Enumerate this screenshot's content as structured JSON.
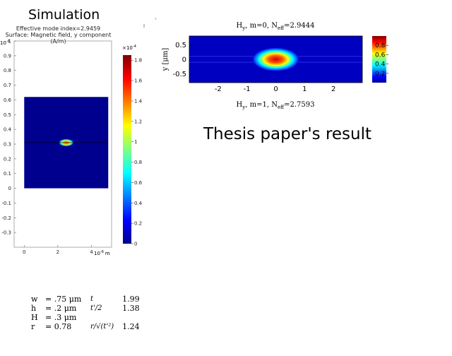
{
  "simulation": {
    "title": "Simulation",
    "subtitle1": "Effective mode index=2.9459",
    "subtitle2": "Surface: Magnetic field, y component (A/m)",
    "y_exponent": "10",
    "y_exponent_power": "-6",
    "x_exponent": "10",
    "x_exponent_power": "-6",
    "x_unit": "m",
    "colorbar_multiplier": "×10",
    "colorbar_multiplier_power": "-4",
    "colormap": "jet",
    "background_color": "#00008f"
  },
  "thesis": {
    "label": "Thesis paper's result",
    "top_title": "H",
    "top_title_sub": "y",
    "top_title_mid": ", m=0, N",
    "top_title_sub2": "eff",
    "top_title_val": "=2.9444",
    "bottom_title": "H",
    "bottom_title_sub": "y",
    "bottom_title_mid": ", m=1, N",
    "bottom_title_sub2": "eff",
    "bottom_title_val": "=2.7593",
    "ylabel": "y [μm]"
  },
  "params": {
    "rows": [
      {
        "name": "w",
        "value": "= .75 μm",
        "sym": "t",
        "num": "1.99"
      },
      {
        "name": "h",
        "value": "= .2 μm",
        "sym": "t'/2",
        "num": "1.38"
      },
      {
        "name": "H",
        "value": "= .3 μm",
        "sym": "",
        "num": ""
      },
      {
        "name": "r",
        "value": "= 0.78",
        "sym": "r/√(t'²)",
        "num": "1.24"
      }
    ]
  },
  "chart_data": [
    {
      "type": "heatmap",
      "title": "Simulation",
      "field": "Magnetic field, y component (A/m)",
      "x_ticks": [
        "0",
        "2",
        "4"
      ],
      "x_range": [
        -0.6,
        5.2
      ],
      "y_ticks": [
        "-0.3",
        "-0.2",
        "-0.1",
        "0",
        "0.1",
        "0.2",
        "0.3",
        "0.4",
        "0.5",
        "0.6",
        "0.7",
        "0.8",
        "0.9",
        "1"
      ],
      "y_range": [
        -0.4,
        1.0
      ],
      "domain": {
        "x": [
          0,
          5
        ],
        "y": [
          0,
          0.62
        ]
      },
      "interface_y": 0.31,
      "peak": {
        "x": 2.5,
        "y": 0.31
      },
      "colorbar": {
        "min": 0,
        "max": 1.85,
        "ticks": [
          "0",
          "0.2",
          "0.4",
          "0.6",
          "0.8",
          "1",
          "1.2",
          "1.4",
          "1.6",
          "1.8"
        ]
      }
    },
    {
      "type": "heatmap",
      "title": "Hy, m=0, Neff=2.9444",
      "x_ticks": [
        "-2",
        "-1",
        "0",
        "1",
        "2"
      ],
      "x_range": [
        -3,
        3
      ],
      "y_ticks": [
        "0.5",
        "0",
        "-0.5"
      ],
      "y_range": [
        -0.8,
        0.8
      ],
      "peak": {
        "x": 0,
        "y": 0
      },
      "colorbar": {
        "min": 0,
        "max": 1,
        "ticks": [
          "0.8",
          "0.6",
          "0.4",
          "0.2"
        ]
      }
    }
  ]
}
